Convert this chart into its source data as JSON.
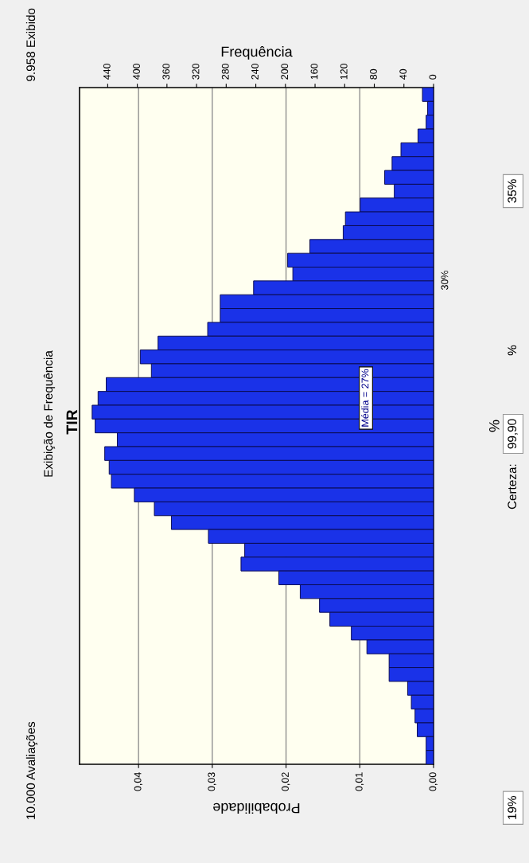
{
  "chart_data": {
    "type": "bar",
    "orientation": "horizontal",
    "title": "TIR",
    "subtitle": "Exibição de Frequência",
    "xlabel": "Probabilidade",
    "x2label": "Frequência",
    "ylabel": "%",
    "categories": [
      null,
      null,
      null,
      null,
      null,
      null,
      null,
      null,
      null,
      null,
      null,
      null,
      null,
      null,
      null,
      null,
      null,
      null,
      null,
      null,
      null,
      null,
      null,
      null,
      null,
      null,
      null,
      null,
      null,
      null,
      null,
      null,
      null,
      null,
      null,
      null,
      null,
      null,
      null,
      null,
      null,
      null,
      null,
      null,
      null,
      null,
      null,
      null,
      null
    ],
    "series": [
      {
        "color": "#1a32e8",
        "axis": "x2",
        "values": [
          15,
          8,
          10,
          21,
          44,
          56,
          66,
          53,
          99,
          119,
          122,
          167,
          197,
          190,
          243,
          288,
          288,
          305,
          372,
          396,
          381,
          442,
          453,
          461,
          457,
          427,
          444,
          438,
          435,
          404,
          377,
          354,
          304,
          255,
          260,
          209,
          180,
          154,
          140,
          111,
          90,
          60,
          60,
          35,
          30,
          25,
          22,
          10,
          10
        ]
      }
    ],
    "xlim": [
      0.048,
      0
    ],
    "xticks": [
      {
        "value": 0,
        "label": "0,00"
      },
      {
        "value": 0.01,
        "label": "0,01"
      },
      {
        "value": 0.02,
        "label": "0,02"
      },
      {
        "value": 0.03,
        "label": "0,03"
      },
      {
        "value": 0.04,
        "label": "0,04"
      }
    ],
    "x2lim": [
      478,
      0
    ],
    "x2ticks": [
      0,
      40,
      80,
      120,
      160,
      200,
      240,
      280,
      320,
      360,
      400,
      440
    ],
    "grid": "x",
    "annotations": [
      "10.000 Avaliações",
      "9.958 Exibido",
      "19%",
      "Certeza:",
      "99,90",
      "%",
      "35%",
      "30%",
      "Média = 27%"
    ]
  }
}
